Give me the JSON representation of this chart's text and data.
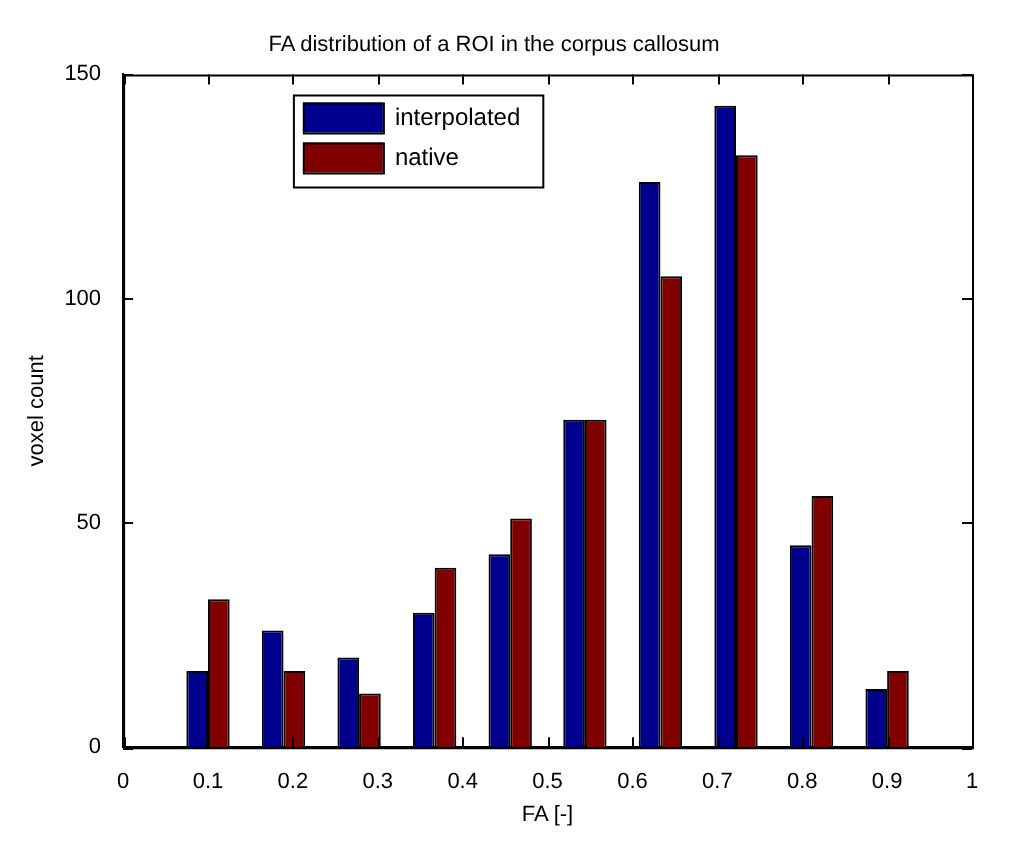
{
  "chart_data": {
    "type": "bar",
    "title": "FA distribution of a ROI in the corpus callosum",
    "xlabel": "FA [-]",
    "ylabel": "voxel count",
    "x": [
      0.1,
      0.189,
      0.278,
      0.367,
      0.456,
      0.544,
      0.633,
      0.722,
      0.811,
      0.9
    ],
    "series": [
      {
        "name": "interpolated",
        "color": "#00008f",
        "values": [
          17,
          26,
          20,
          30,
          43,
          73,
          126,
          143,
          45,
          13
        ]
      },
      {
        "name": "native",
        "color": "#800000",
        "values": [
          33,
          17,
          12,
          40,
          51,
          73,
          105,
          132,
          56,
          17
        ]
      }
    ],
    "xlim": [
      0,
      1
    ],
    "xticks": [
      0,
      0.1,
      0.2,
      0.3,
      0.4,
      0.5,
      0.6,
      0.7,
      0.8,
      0.9,
      1
    ],
    "ylim": [
      0,
      150
    ],
    "yticks": [
      0,
      50,
      100,
      150
    ],
    "legend": "top left"
  }
}
